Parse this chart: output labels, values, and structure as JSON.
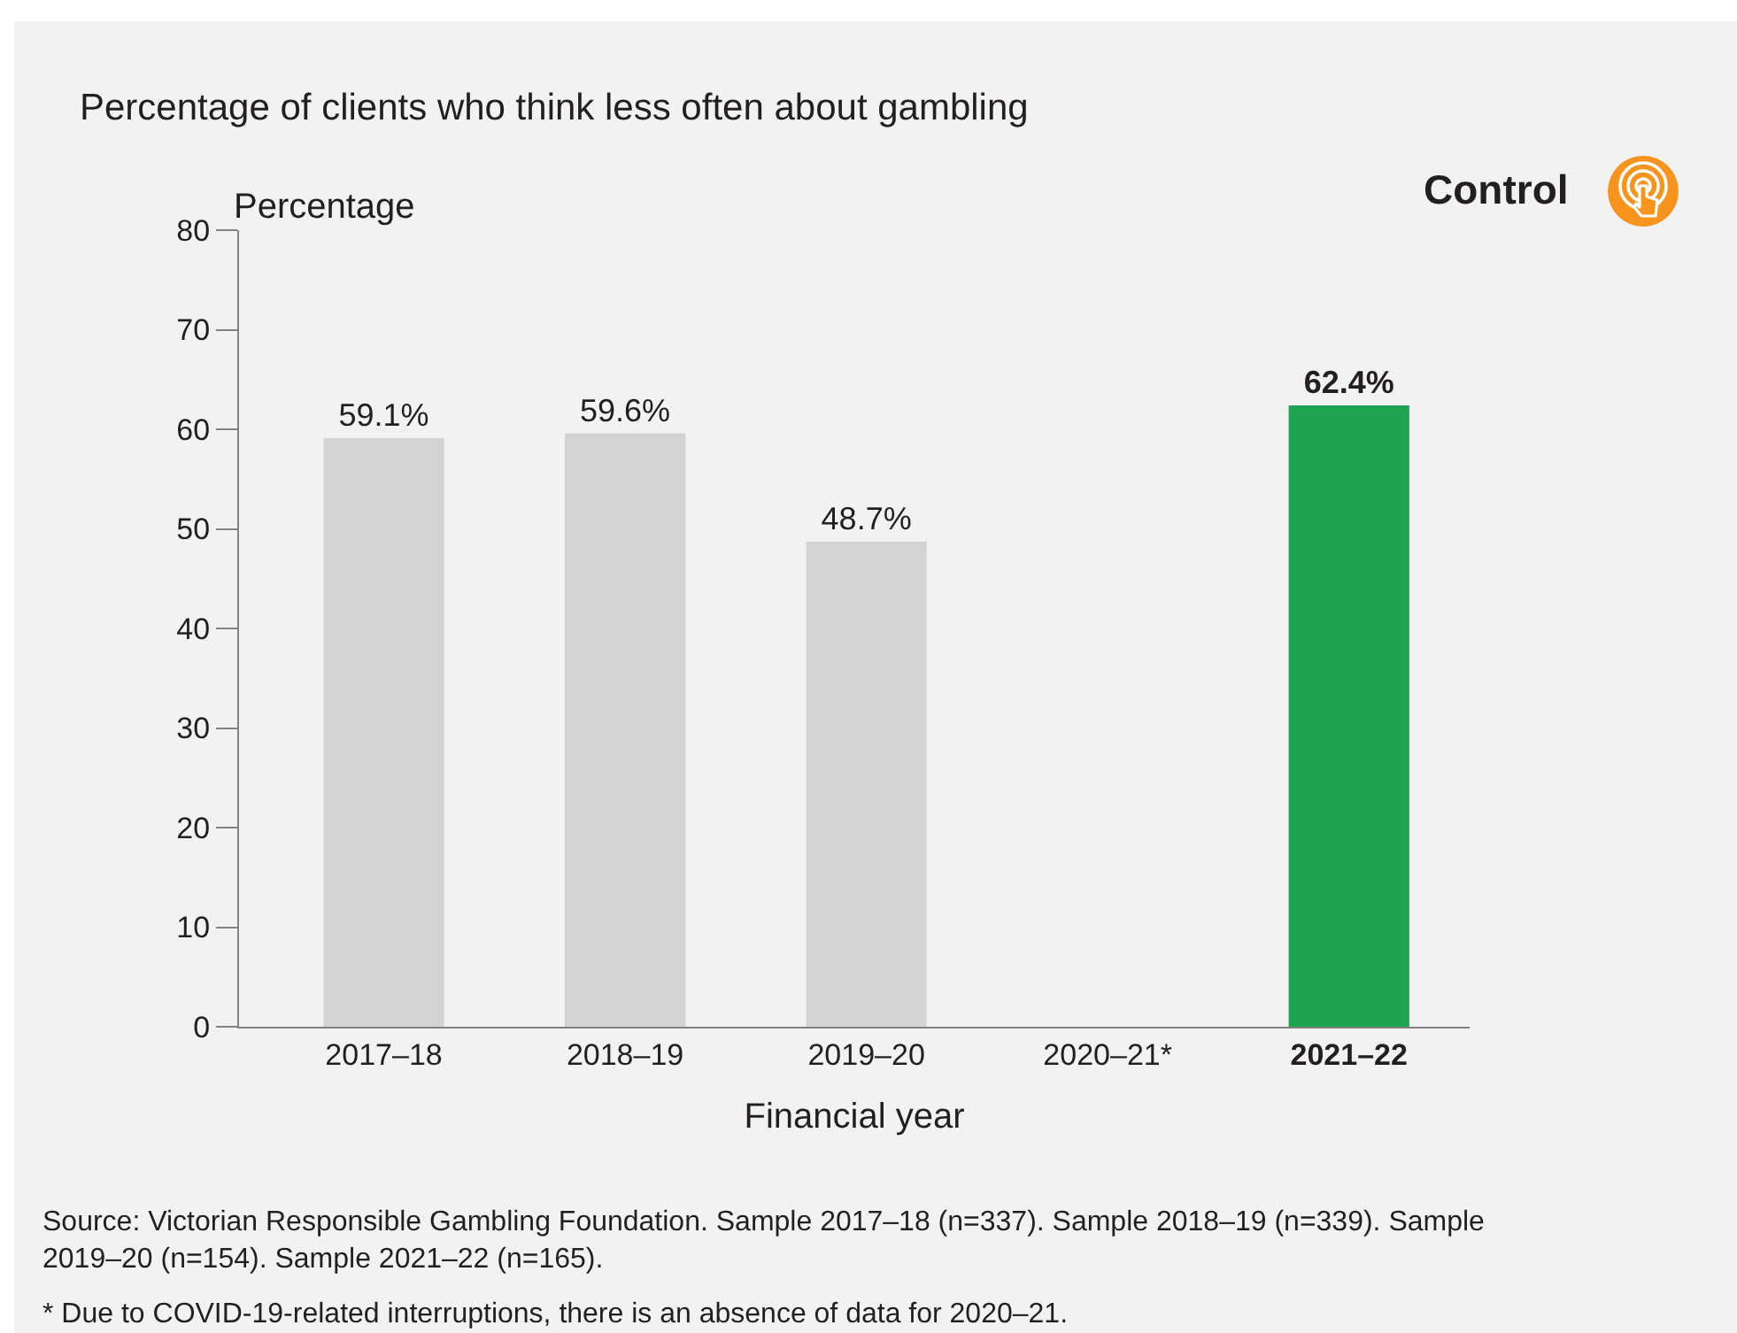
{
  "chart_data": {
    "type": "bar",
    "title": "Percentage of clients who think less often about gambling",
    "categories": [
      "2017–18",
      "2018–19",
      "2019–20",
      "2020–21*",
      "2021–22"
    ],
    "values": [
      59.1,
      59.6,
      48.7,
      null,
      62.4
    ],
    "value_labels": [
      "59.1%",
      "59.6%",
      "48.7%",
      null,
      "62.4%"
    ],
    "colors": [
      "#d1d3d4",
      "#d1d3d4",
      "#d1d3d4",
      "#d1d3d4",
      "#1fa54f"
    ],
    "xlabel": "Financial year",
    "ylabel": "Percentage",
    "ylim": [
      0,
      80
    ],
    "yticks": [
      0,
      10,
      20,
      30,
      40,
      50,
      60,
      70,
      80
    ],
    "annotations": [
      "Control",
      "Source: Victorian Responsible Gambling Foundation. Sample 2017–18 (n=337). Sample 2018–19 (n=339). Sample 2019–20 (n=154). Sample 2021–22 (n=165).",
      "* Due to COVID-19-related interruptions, there is an absence of data for 2020–21."
    ]
  }
}
